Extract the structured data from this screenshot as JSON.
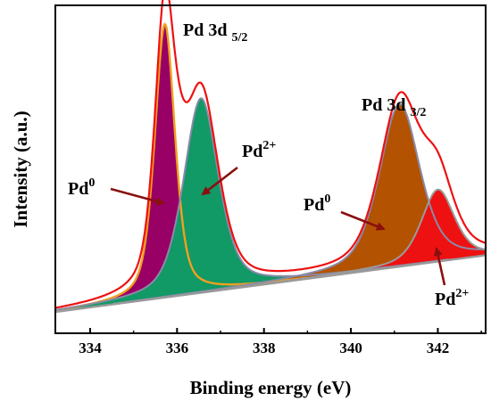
{
  "chart_data": {
    "type": "area",
    "xlabel": "Binding energy (eV)",
    "ylabel": "Intensity (a.u.)",
    "xlim": [
      333.2,
      343.1
    ],
    "ylim": [
      0,
      1.0
    ],
    "x_ticks": [
      "334",
      "336",
      "338",
      "340",
      "342"
    ],
    "y_ticks": [],
    "grid": false,
    "legend": "none",
    "background": {
      "at": [
        333.2,
        343.1
      ],
      "values": [
        0.0,
        0.2
      ]
    },
    "peaks": [
      {
        "group": "Pd 3d 5/2",
        "label": "Pd0",
        "center": 335.72,
        "height": 0.965,
        "fwhm": 0.55,
        "color": "#990066"
      },
      {
        "group": "Pd 3d 5/2",
        "label": "Pd2+",
        "center": 336.55,
        "height": 0.686,
        "fwhm": 0.95,
        "color": "#119966"
      },
      {
        "group": "Pd 3d 3/2",
        "label": "Pd0",
        "center": 341.12,
        "height": 0.573,
        "fwhm": 1.1,
        "color": "#b35200"
      },
      {
        "group": "Pd 3d 3/2",
        "label": "Pd2+",
        "center": 342.0,
        "height": 0.254,
        "fwhm": 0.9,
        "color": "#ee1111"
      }
    ],
    "envelope_color": "#ee1111",
    "group_titles": [
      {
        "main": "Pd 3d",
        "sub": "5/2"
      },
      {
        "main": "Pd 3d",
        "sub": "3/2"
      }
    ],
    "annotations": [
      {
        "base": "Pd",
        "sup": "0"
      },
      {
        "base": "Pd",
        "sup": "2+"
      },
      {
        "base": "Pd",
        "sup": "0"
      },
      {
        "base": "Pd",
        "sup": "2+"
      }
    ]
  }
}
